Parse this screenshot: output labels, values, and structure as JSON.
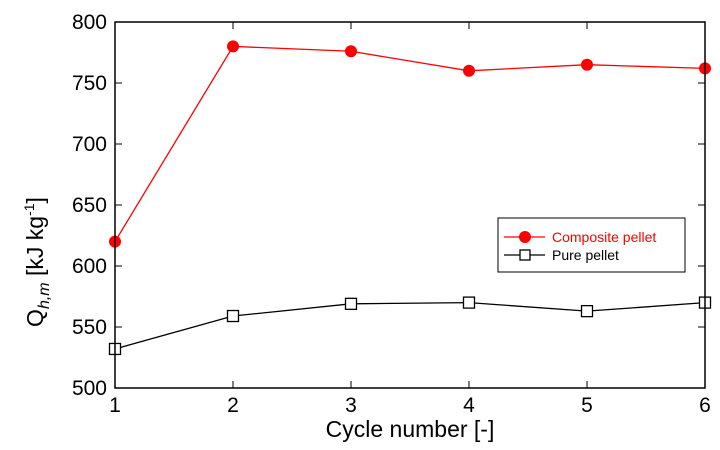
{
  "chart_data": {
    "type": "line",
    "title": "",
    "xlabel": "Cycle number [-]",
    "ylabel": {
      "main": "Q",
      "subscript": "h,m",
      "unit_prefix": " [kJ kg",
      "unit_sup": "-1",
      "unit_suffix": "]"
    },
    "x": [
      1,
      2,
      3,
      4,
      5,
      6
    ],
    "xlim": [
      1,
      6
    ],
    "ylim": [
      500,
      800
    ],
    "xticks": [
      1,
      2,
      3,
      4,
      5,
      6
    ],
    "yticks": [
      500,
      550,
      600,
      650,
      700,
      750,
      800
    ],
    "grid": false,
    "legend_position": "right",
    "series": [
      {
        "name": "Composite pellet",
        "color": "#ff0000",
        "marker": "filled-circle",
        "values": [
          620,
          780,
          776,
          760,
          765,
          762
        ]
      },
      {
        "name": "Pure pellet",
        "color": "#000000",
        "marker": "open-square",
        "values": [
          532,
          559,
          569,
          570,
          563,
          570
        ]
      }
    ]
  }
}
